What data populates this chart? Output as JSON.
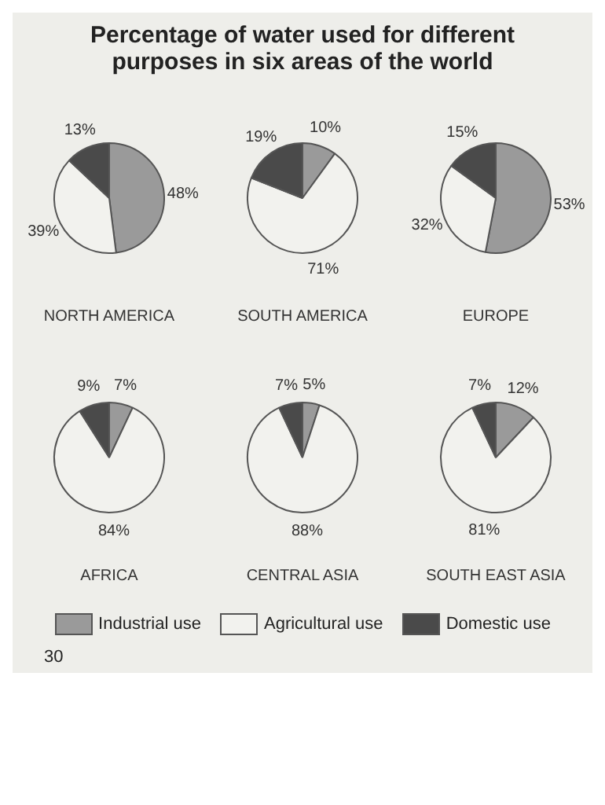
{
  "chart_data": [
    {
      "type": "pie",
      "title": "Percentage of water used for different purposes in six areas of the world",
      "xlabel": "NORTH AMERICA",
      "categories": [
        "Industrial use",
        "Agricultural use",
        "Domestic use"
      ],
      "values": [
        48,
        39,
        13
      ],
      "value_labels": [
        "48%",
        "39%",
        "13%"
      ],
      "colors": [
        "#9a9a9a",
        "#f2f2ee",
        "#4a4a4a"
      ],
      "legend": "bottom",
      "annotations": [
        "30"
      ]
    },
    {
      "type": "pie",
      "xlabel": "SOUTH AMERICA",
      "categories": [
        null,
        null,
        null
      ],
      "values": [
        10,
        71,
        19
      ],
      "value_labels": [
        "10%",
        "71%",
        "19%"
      ],
      "colors": [
        "#9a9a9a",
        "#f2f2ee",
        "#4a4a4a"
      ]
    },
    {
      "type": "pie",
      "xlabel": "EUROPE",
      "categories": [
        null,
        null,
        null
      ],
      "values": [
        53,
        32,
        15
      ],
      "value_labels": [
        "53%",
        "32%",
        "15%"
      ],
      "colors": [
        "#9a9a9a",
        "#f2f2ee",
        "#4a4a4a"
      ]
    },
    {
      "type": "pie",
      "xlabel": "AFRICA",
      "categories": [
        null,
        null,
        null
      ],
      "values": [
        7,
        84,
        9
      ],
      "value_labels": [
        "7%",
        "84%",
        "9%"
      ],
      "colors": [
        "#9a9a9a",
        "#f2f2ee",
        "#4a4a4a"
      ]
    },
    {
      "type": "pie",
      "xlabel": "CENTRAL ASIA",
      "categories": [
        null,
        null,
        null
      ],
      "values": [
        5,
        88,
        7
      ],
      "value_labels": [
        "5%",
        "88%",
        "7%"
      ],
      "colors": [
        "#9a9a9a",
        "#f2f2ee",
        "#4a4a4a"
      ]
    },
    {
      "type": "pie",
      "xlabel": "SOUTH EAST ASIA",
      "categories": [
        null,
        null,
        null
      ],
      "values": [
        12,
        81,
        7
      ],
      "value_labels": [
        "12%",
        "81%",
        "7%"
      ],
      "colors": [
        "#9a9a9a",
        "#f2f2ee",
        "#4a4a4a"
      ]
    }
  ]
}
